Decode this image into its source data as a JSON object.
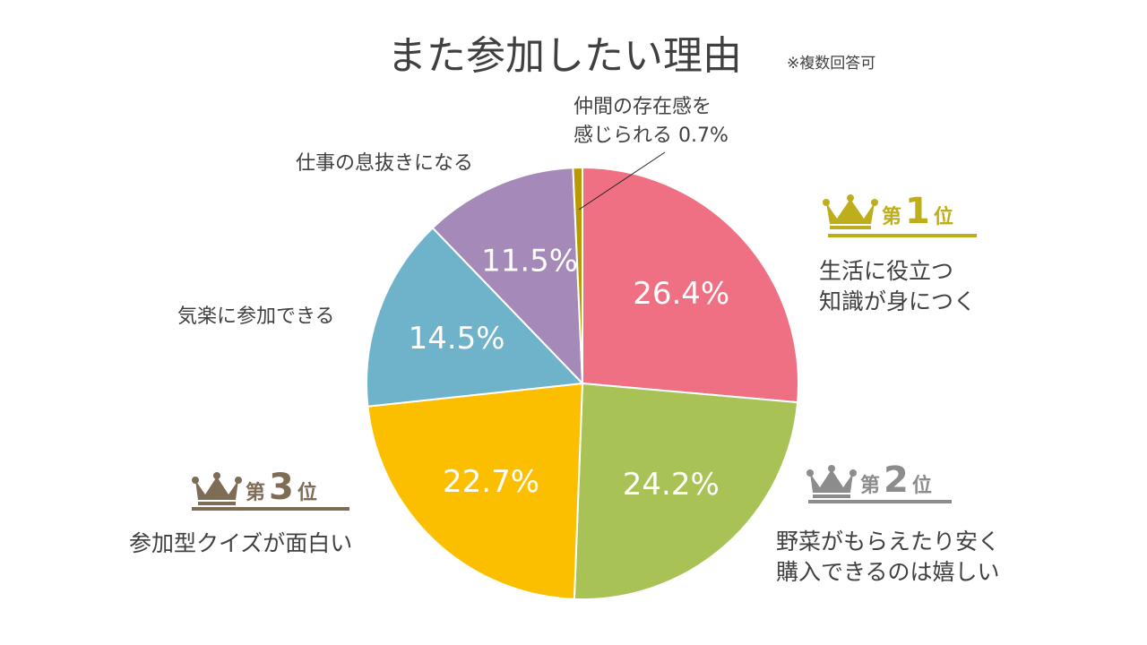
{
  "title": "また参加したい理由",
  "note": "※複数回答可",
  "chart_data": {
    "type": "pie",
    "title": "また参加したい理由",
    "start_angle": "12 o'clock",
    "direction": "clockwise",
    "slices": [
      {
        "label": "生活に役立つ知識が身につく",
        "label_lines": [
          "生活に役立つ",
          "知識が身につく"
        ],
        "value": 26.4,
        "value_label": "26.4%",
        "color": "#F07083"
      },
      {
        "label": "野菜がもらえたり安く購入できるのは嬉しい",
        "label_lines": [
          "野菜がもらえたり安く",
          "購入できるのは嬉しい"
        ],
        "value": 24.2,
        "value_label": "24.2%",
        "color": "#A9C256"
      },
      {
        "label": "参加型クイズが面白い",
        "label_lines": [
          "参加型クイズが面白い"
        ],
        "value": 22.7,
        "value_label": "22.7%",
        "color": "#FCBF00"
      },
      {
        "label": "気楽に参加できる",
        "label_lines": [
          "気楽に参加できる"
        ],
        "value": 14.5,
        "value_label": "14.5%",
        "color": "#6FB3CB"
      },
      {
        "label": "仕事の息抜きになる",
        "label_lines": [
          "仕事の息抜きになる"
        ],
        "value": 11.5,
        "value_label": "11.5%",
        "color": "#A58AB9"
      },
      {
        "label": "仲間の存在感を感じられる",
        "label_lines": [
          "仲間の存在感を",
          "感じられる 0.7%"
        ],
        "value": 0.7,
        "value_label": "0.7%",
        "color": "#B89A00"
      }
    ]
  },
  "ranks": [
    {
      "dai": "第",
      "num": "1",
      "i": "位",
      "color": "#BFAE1C"
    },
    {
      "dai": "第",
      "num": "2",
      "i": "位",
      "color": "#8C8C8C"
    },
    {
      "dai": "第",
      "num": "3",
      "i": "位",
      "color": "#7F6C57"
    }
  ]
}
